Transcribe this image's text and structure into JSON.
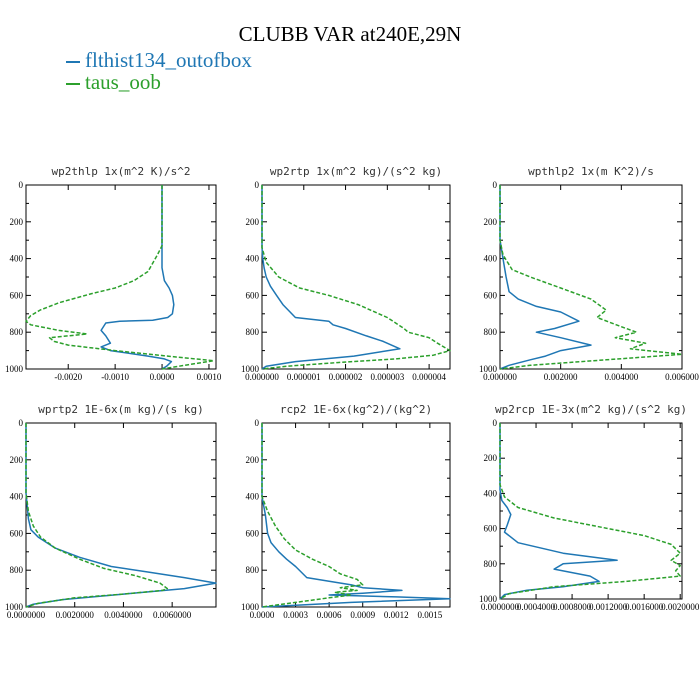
{
  "figure": {
    "title": "CLUBB VAR at240E,29N",
    "legend": [
      {
        "name": "flthist134_outofbox",
        "color": "#1f77b4"
      },
      {
        "name": "taus_oob",
        "color": "#2ca02c"
      }
    ]
  },
  "chart_data": [
    {
      "type": "line",
      "title": "wp2thlp  1x(m^2 K)/s^2",
      "xlim": [
        -0.0029,
        0.00115
      ],
      "ylim": [
        1000,
        0
      ],
      "yticks": [
        "0",
        "200",
        "400",
        "600",
        "800",
        "1000"
      ],
      "xticks": [
        {
          "v": -0.002,
          "label": "-0.0020"
        },
        {
          "v": -0.001,
          "label": "-0.0010"
        },
        {
          "v": 0.0,
          "label": "0.0000"
        },
        {
          "v": 0.001,
          "label": "0.0010"
        }
      ],
      "series": [
        {
          "name": "flthist134_outofbox",
          "x": [
            0,
            0,
            0,
            0,
            5e-05,
            0.00015,
            0.00022,
            0.00025,
            0.00022,
            0.00012,
            -0.0002,
            -0.0009,
            -0.0012,
            -0.0013,
            -0.0012,
            -0.0011,
            -0.0013,
            -0.0011,
            -0.0003,
            5e-05,
            0.0002,
            0.0001,
            0
          ],
          "y": [
            0,
            150,
            330,
            450,
            520,
            560,
            600,
            650,
            700,
            720,
            735,
            740,
            750,
            790,
            820,
            860,
            880,
            900,
            930,
            945,
            960,
            985,
            1000
          ]
        },
        {
          "name": "taus_oob",
          "x": [
            0,
            0,
            0,
            -0.0001,
            -0.0003,
            -0.0006,
            -0.001,
            -0.0015,
            -0.0022,
            -0.0026,
            -0.0028,
            -0.0029,
            -0.0028,
            -0.0022,
            -0.0016,
            -0.0024,
            -0.0023,
            -0.002,
            -0.001,
            0.0003,
            0.0011,
            0.0006,
            0
          ],
          "y": [
            0,
            150,
            330,
            380,
            470,
            520,
            560,
            590,
            640,
            680,
            710,
            740,
            760,
            790,
            810,
            830,
            850,
            870,
            900,
            935,
            955,
            975,
            1000
          ]
        }
      ]
    },
    {
      "type": "line",
      "title": "wp2rtp  1x(m^2 kg)/(s^2 kg)",
      "xlim": [
        0,
        4.5e-06
      ],
      "ylim": [
        1000,
        0
      ],
      "yticks": [
        "0",
        "200",
        "400",
        "600",
        "800",
        "1000"
      ],
      "xticks": [
        {
          "v": 0,
          "label": "0.000000"
        },
        {
          "v": 1e-06,
          "label": "0.000001"
        },
        {
          "v": 2e-06,
          "label": "0.000002"
        },
        {
          "v": 3e-06,
          "label": "0.000003"
        },
        {
          "v": 4e-06,
          "label": "0.000004"
        }
      ],
      "series": [
        {
          "name": "flthist134_outofbox",
          "x": [
            0,
            0,
            2e-08,
            5e-08,
            1e-07,
            2e-07,
            3.5e-07,
            5e-07,
            8e-07,
            1.6e-06,
            1.7e-06,
            2e-06,
            2.5e-06,
            2.9e-06,
            3.3e-06,
            2.2e-06,
            8e-07,
            1e-07,
            0
          ],
          "y": [
            0,
            340,
            400,
            450,
            500,
            550,
            600,
            650,
            720,
            740,
            760,
            780,
            820,
            850,
            890,
            930,
            960,
            985,
            1000
          ]
        },
        {
          "name": "taus_oob",
          "x": [
            0,
            0,
            1e-07,
            4e-07,
            9e-07,
            1.6e-06,
            2.3e-06,
            3e-06,
            3.4e-06,
            3.5e-06,
            4e-06,
            4.2e-06,
            4.5e-06,
            4.1e-06,
            3.2e-06,
            1.8e-06,
            6e-07,
            0
          ],
          "y": [
            0,
            340,
            420,
            500,
            560,
            600,
            650,
            720,
            780,
            800,
            830,
            860,
            900,
            925,
            945,
            965,
            985,
            1000
          ]
        }
      ]
    },
    {
      "type": "line",
      "title": "wpthlp2  1x(m K^2)/s",
      "xlim": [
        0,
        0.006
      ],
      "ylim": [
        1000,
        0
      ],
      "yticks": [
        "0",
        "200",
        "400",
        "600",
        "800",
        "1000"
      ],
      "xticks": [
        {
          "v": 0,
          "label": "0.000000"
        },
        {
          "v": 0.002,
          "label": "0.002000"
        },
        {
          "v": 0.004,
          "label": "0.004000"
        },
        {
          "v": 0.006,
          "label": "0.006000"
        }
      ],
      "series": [
        {
          "name": "flthist134_outofbox",
          "x": [
            0,
            0,
            0.0001,
            0.0002,
            0.0003,
            0.0006,
            0.0012,
            0.002,
            0.0026,
            0.0018,
            0.0012,
            0.002,
            0.003,
            0.002,
            0.0015,
            0.001,
            0.0003,
            0
          ],
          "y": [
            0,
            300,
            400,
            500,
            580,
            620,
            660,
            690,
            740,
            780,
            800,
            830,
            870,
            900,
            930,
            950,
            980,
            1000
          ]
        },
        {
          "name": "taus_oob",
          "x": [
            0,
            0,
            0.0001,
            0.0004,
            0.001,
            0.002,
            0.003,
            0.0035,
            0.0032,
            0.004,
            0.0045,
            0.0038,
            0.0048,
            0.0043,
            0.006,
            0.0035,
            0.001,
            0
          ],
          "y": [
            0,
            300,
            380,
            460,
            500,
            560,
            620,
            680,
            720,
            770,
            800,
            830,
            860,
            890,
            920,
            950,
            980,
            1000
          ]
        }
      ]
    },
    {
      "type": "line",
      "title": "wprtp2  1E-6x(m kg)/(s kg)",
      "xlim": [
        0,
        0.0078
      ],
      "ylim": [
        1000,
        0
      ],
      "yticks": [
        "0",
        "200",
        "400",
        "600",
        "800",
        "1000"
      ],
      "xticks": [
        {
          "v": 0,
          "label": "0.0000000"
        },
        {
          "v": 0.002,
          "label": "0.0020000"
        },
        {
          "v": 0.004,
          "label": "0.0040000"
        },
        {
          "v": 0.006,
          "label": "0.0060000"
        }
      ],
      "series": [
        {
          "name": "flthist134_outofbox",
          "x": [
            0,
            0,
            5e-05,
            0.0001,
            0.0002,
            0.0005,
            0.0012,
            0.0022,
            0.0035,
            0.005,
            0.0065,
            0.0078,
            0.0065,
            0.004,
            0.0015,
            0.0003,
            0
          ],
          "y": [
            0,
            380,
            450,
            520,
            580,
            620,
            680,
            730,
            780,
            810,
            840,
            870,
            900,
            930,
            960,
            985,
            1000
          ]
        },
        {
          "name": "taus_oob",
          "x": [
            0,
            0,
            0.0001,
            0.0003,
            0.0006,
            0.0012,
            0.0022,
            0.0032,
            0.0045,
            0.0055,
            0.0058,
            0.0056,
            0.004,
            0.002,
            0.0005,
            0
          ],
          "y": [
            0,
            380,
            480,
            560,
            620,
            680,
            740,
            790,
            830,
            870,
            900,
            910,
            930,
            950,
            980,
            1000
          ]
        }
      ]
    },
    {
      "type": "line",
      "title": "rcp2  1E-6x(kg^2)/(kg^2)",
      "xlim": [
        0,
        0.00168
      ],
      "ylim": [
        1000,
        0
      ],
      "yticks": [
        "0",
        "200",
        "400",
        "600",
        "800",
        "1000"
      ],
      "xticks": [
        {
          "v": 0,
          "label": "0.0000"
        },
        {
          "v": 0.0003,
          "label": "0.0003"
        },
        {
          "v": 0.0006,
          "label": "0.0006"
        },
        {
          "v": 0.0009,
          "label": "0.0009"
        },
        {
          "v": 0.0012,
          "label": "0.0012"
        },
        {
          "v": 0.0015,
          "label": "0.0015"
        }
      ],
      "series": [
        {
          "name": "flthist134_outofbox",
          "x": [
            0,
            0,
            3e-05,
            5e-05,
            8e-05,
            0.00015,
            0.00022,
            0.0003,
            0.0004,
            0.0006,
            0.0008,
            0.0009,
            0.00125,
            0.0009,
            0.0006,
            0.0012,
            0.00168,
            0.0008,
            0
          ],
          "y": [
            0,
            400,
            500,
            600,
            650,
            700,
            740,
            780,
            840,
            860,
            880,
            895,
            910,
            925,
            935,
            945,
            955,
            975,
            1000
          ]
        },
        {
          "name": "taus_oob",
          "x": [
            0,
            0,
            5e-05,
            0.00012,
            0.0002,
            0.0003,
            0.00045,
            0.0006,
            0.0007,
            0.00085,
            0.0009,
            0.0007,
            0.00085,
            0.00065,
            0.0008,
            0.0006,
            0.0003,
            0
          ],
          "y": [
            0,
            400,
            480,
            560,
            630,
            690,
            740,
            780,
            820,
            850,
            880,
            895,
            910,
            920,
            935,
            950,
            975,
            1000
          ]
        }
      ]
    },
    {
      "type": "line",
      "title": "wp2rcp  1E-3x(m^2 kg)/(s^2 kg)",
      "xlim": [
        0,
        0.00202
      ],
      "ylim": [
        1000,
        0
      ],
      "yticks": [
        "0",
        "200",
        "400",
        "600",
        "800",
        "1000"
      ],
      "xticks": [
        {
          "v": 0,
          "label": "0.0000000"
        },
        {
          "v": 0.0004,
          "label": "0.0004000"
        },
        {
          "v": 0.0008,
          "label": "0.0008000"
        },
        {
          "v": 0.0012,
          "label": "0.0012000"
        },
        {
          "v": 0.0016,
          "label": "0.0016000"
        },
        {
          "v": 0.002,
          "label": "0.0020000"
        }
      ],
      "series": [
        {
          "name": "flthist134_outofbox",
          "x": [
            0,
            0,
            2e-05,
            8e-05,
            0.00012,
            8e-05,
            5e-05,
            0.0002,
            0.0007,
            0.0013,
            0.0007,
            0.0006,
            0.001,
            0.0011,
            0.0007,
            0.0003,
            5e-05,
            0
          ],
          "y": [
            0,
            380,
            440,
            480,
            520,
            580,
            620,
            680,
            740,
            780,
            800,
            830,
            870,
            900,
            930,
            950,
            975,
            1000
          ]
        },
        {
          "name": "taus_oob",
          "x": [
            0,
            0,
            5e-05,
            0.0002,
            0.0006,
            0.0011,
            0.0016,
            0.0019,
            0.002,
            0.0019,
            0.002,
            0.00195,
            0.002,
            0.0014,
            0.0006,
            0.0001,
            0
          ],
          "y": [
            0,
            350,
            420,
            480,
            540,
            590,
            640,
            690,
            740,
            780,
            810,
            840,
            870,
            900,
            930,
            970,
            1000
          ]
        }
      ]
    }
  ]
}
